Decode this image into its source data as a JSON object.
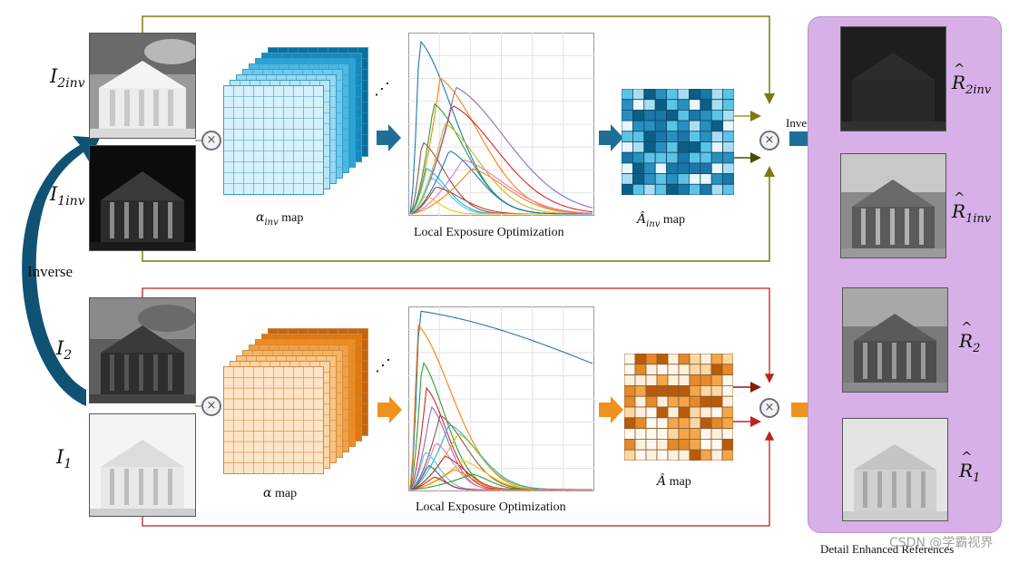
{
  "labels": {
    "i2inv_base": "I",
    "i2inv_sub": "2inv",
    "i1inv_base": "I",
    "i1inv_sub": "1inv",
    "i2_base": "I",
    "i2_sub": "2",
    "i1_base": "I",
    "i1_sub": "1",
    "inverse_left": "Inverse",
    "inverse_right": "Inverse",
    "otimes": "×",
    "ellipsis": "⋰"
  },
  "top_row": {
    "alpha_map_symbol": "α",
    "alpha_map_sub": "inv",
    "alpha_map_word": " map",
    "curve_caption": "Local Exposure Optimization",
    "a_map_symbol": "Â",
    "a_map_sub": "inv",
    "a_map_word": " map"
  },
  "bottom_row": {
    "alpha_map_symbol": "α",
    "alpha_map_word": " map",
    "curve_caption": "Local Exposure Optimization",
    "a_map_symbol": "Â",
    "a_map_word": " map"
  },
  "outputs": {
    "panel_caption": "Detail Enhanced References",
    "r2inv_base": "R",
    "r2inv_sub": "2inv",
    "r1inv_base": "R",
    "r1inv_sub": "1inv",
    "r2_base": "R",
    "r2_sub": "2",
    "r1_base": "R",
    "r1_sub": "1"
  },
  "watermark": "CSDN @学霸视界",
  "colors": {
    "top_accent": "#1e6e96",
    "top_light": "#5fc4e8",
    "bottom_accent": "#f0911e",
    "bottom_light": "#fde2c0",
    "olive_line": "#7a7a10",
    "red_line": "#c02020",
    "panel": "#d7b0e8"
  }
}
